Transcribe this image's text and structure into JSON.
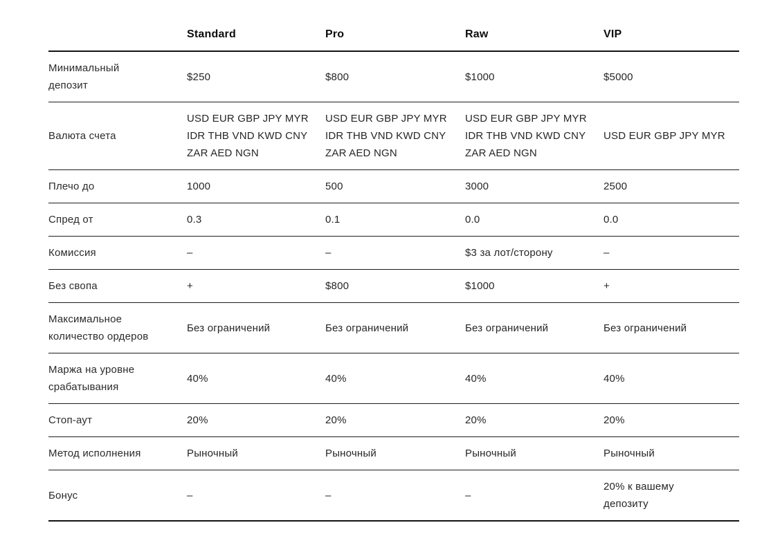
{
  "table": {
    "columns": [
      "Standard",
      "Pro",
      "Raw",
      "VIP"
    ],
    "corner_label": "",
    "rows": [
      {
        "label": "Минимальный\nдепозит",
        "values": [
          "$250",
          "$800",
          "$1000",
          "$5000"
        ]
      },
      {
        "label": "Валюта счета",
        "values": [
          "USD EUR GBP JPY MYR\nIDR THB VND KWD CNY\nZAR AED NGN",
          "USD EUR GBP JPY MYR\nIDR THB VND KWD CNY\nZAR AED NGN",
          "USD EUR GBP JPY MYR\nIDR THB VND KWD CNY\nZAR AED NGN",
          "USD EUR GBP JPY MYR"
        ]
      },
      {
        "label": "Плечо до",
        "values": [
          "1000",
          "500",
          "3000",
          "2500"
        ]
      },
      {
        "label": "Спред от",
        "values": [
          "0.3",
          "0.1",
          "0.0",
          "0.0"
        ]
      },
      {
        "label": "Комиссия",
        "values": [
          "–",
          "–",
          "$3 за лот/сторону",
          "–"
        ]
      },
      {
        "label": "Без свопа",
        "values": [
          "+",
          "$800",
          "$1000",
          "+"
        ]
      },
      {
        "label": "Максимальное\nколичество ордеров",
        "values": [
          "Без ограничений",
          "Без ограничений",
          "Без ограничений",
          "Без ограничений"
        ]
      },
      {
        "label": "Маржа на уровне\nсрабатывания",
        "values": [
          "40%",
          "40%",
          "40%",
          "40%"
        ]
      },
      {
        "label": "Стоп-аут",
        "values": [
          "20%",
          "20%",
          "20%",
          "20%"
        ]
      },
      {
        "label": "Метод исполнения",
        "values": [
          "Рыночный",
          "Рыночный",
          "Рыночный",
          "Рыночный"
        ]
      },
      {
        "label": "Бонус",
        "values": [
          "–",
          "–",
          "–",
          "20% к вашему\nдепозиту"
        ]
      }
    ],
    "colors": {
      "background": "#ffffff",
      "heading_text": "#0d0d0d",
      "body_text": "#262626",
      "border": "#1d1d1d"
    }
  }
}
